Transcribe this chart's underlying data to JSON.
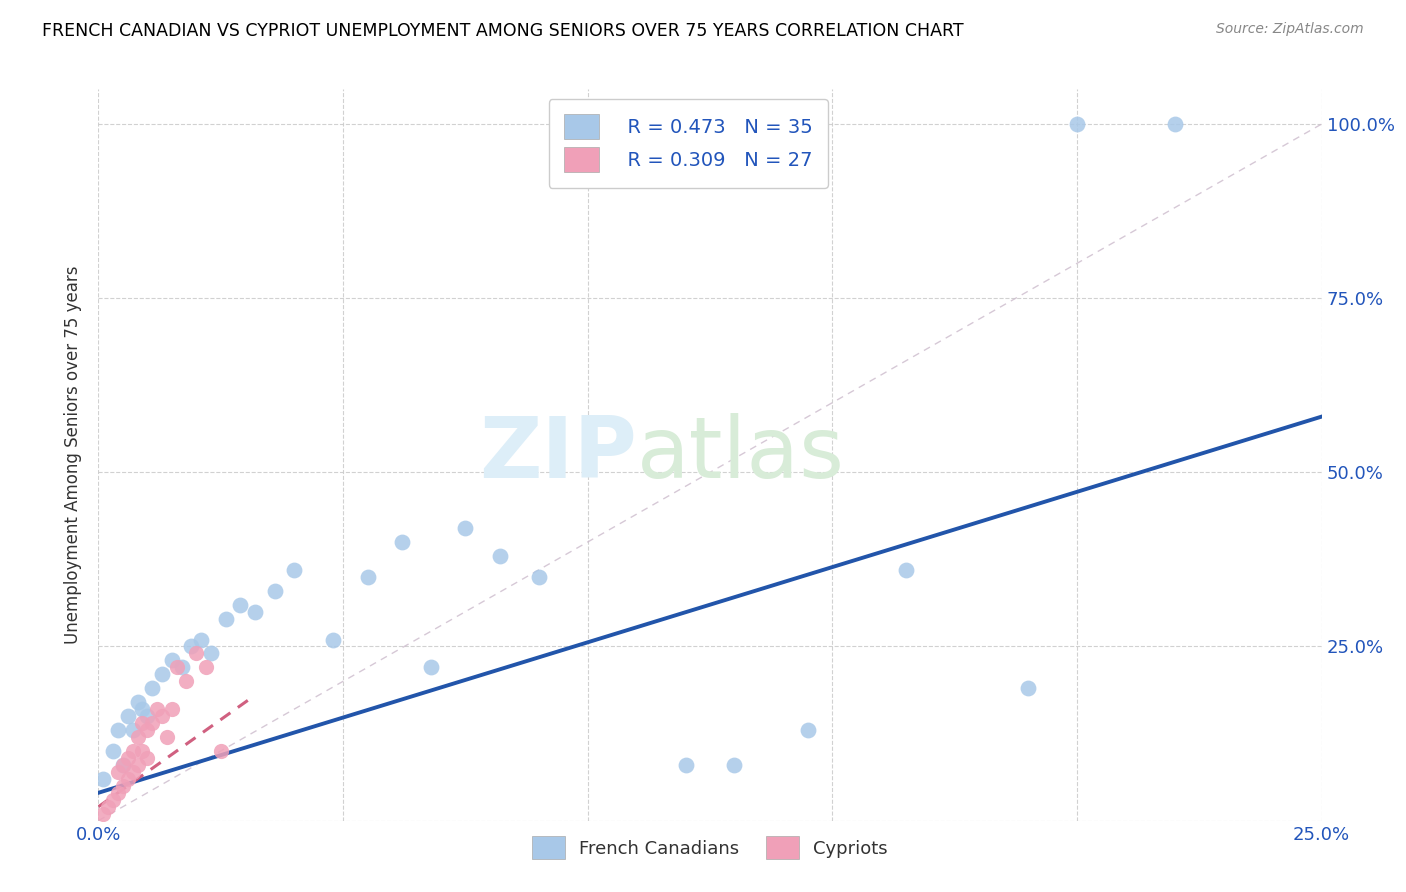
{
  "title": "FRENCH CANADIAN VS CYPRIOT UNEMPLOYMENT AMONG SENIORS OVER 75 YEARS CORRELATION CHART",
  "source": "Source: ZipAtlas.com",
  "ylabel": "Unemployment Among Seniors over 75 years",
  "xlim": [
    0.0,
    0.25
  ],
  "ylim": [
    0.0,
    1.05
  ],
  "xtick_positions": [
    0.0,
    0.05,
    0.1,
    0.15,
    0.2,
    0.25
  ],
  "xticklabels": [
    "0.0%",
    "",
    "",
    "",
    "",
    "25.0%"
  ],
  "ytick_positions": [
    0.0,
    0.25,
    0.5,
    0.75,
    1.0
  ],
  "yticklabels": [
    "",
    "25.0%",
    "50.0%",
    "75.0%",
    "100.0%"
  ],
  "blue_scatter_color": "#a8c8e8",
  "blue_line_color": "#2255aa",
  "pink_scatter_color": "#f0a0b8",
  "pink_line_color": "#d06080",
  "diag_line_color": "#ccbbcc",
  "legend_R_blue": "R = 0.473",
  "legend_N_blue": "N = 35",
  "legend_R_pink": "R = 0.309",
  "legend_N_pink": "N = 27",
  "legend_label_blue": "French Canadians",
  "legend_label_pink": "Cypriots",
  "blue_line_x0": 0.0,
  "blue_line_y0": 0.04,
  "blue_line_x1": 0.25,
  "blue_line_y1": 0.58,
  "pink_line_x0": 0.0,
  "pink_line_y0": 0.02,
  "pink_line_x1": 0.04,
  "pink_line_y1": 0.22,
  "fc_x": [
    0.001,
    0.003,
    0.004,
    0.005,
    0.006,
    0.007,
    0.008,
    0.009,
    0.01,
    0.011,
    0.013,
    0.015,
    0.017,
    0.019,
    0.021,
    0.023,
    0.026,
    0.029,
    0.032,
    0.036,
    0.04,
    0.048,
    0.055,
    0.062,
    0.068,
    0.075,
    0.082,
    0.09,
    0.12,
    0.13,
    0.145,
    0.165,
    0.19,
    0.2,
    0.22
  ],
  "fc_y": [
    0.06,
    0.1,
    0.13,
    0.08,
    0.15,
    0.13,
    0.17,
    0.16,
    0.15,
    0.19,
    0.21,
    0.23,
    0.22,
    0.25,
    0.26,
    0.24,
    0.29,
    0.31,
    0.3,
    0.33,
    0.36,
    0.26,
    0.35,
    0.4,
    0.22,
    0.42,
    0.38,
    0.35,
    0.08,
    0.08,
    0.13,
    0.36,
    0.19,
    1.0,
    1.0
  ],
  "cy_x": [
    0.001,
    0.002,
    0.003,
    0.004,
    0.004,
    0.005,
    0.005,
    0.006,
    0.006,
    0.007,
    0.007,
    0.008,
    0.008,
    0.009,
    0.009,
    0.01,
    0.01,
    0.011,
    0.012,
    0.013,
    0.014,
    0.015,
    0.016,
    0.018,
    0.02,
    0.022,
    0.025
  ],
  "cy_y": [
    0.01,
    0.02,
    0.03,
    0.04,
    0.07,
    0.05,
    0.08,
    0.06,
    0.09,
    0.07,
    0.1,
    0.08,
    0.12,
    0.1,
    0.14,
    0.09,
    0.13,
    0.14,
    0.16,
    0.15,
    0.12,
    0.16,
    0.22,
    0.2,
    0.24,
    0.22,
    0.1
  ]
}
